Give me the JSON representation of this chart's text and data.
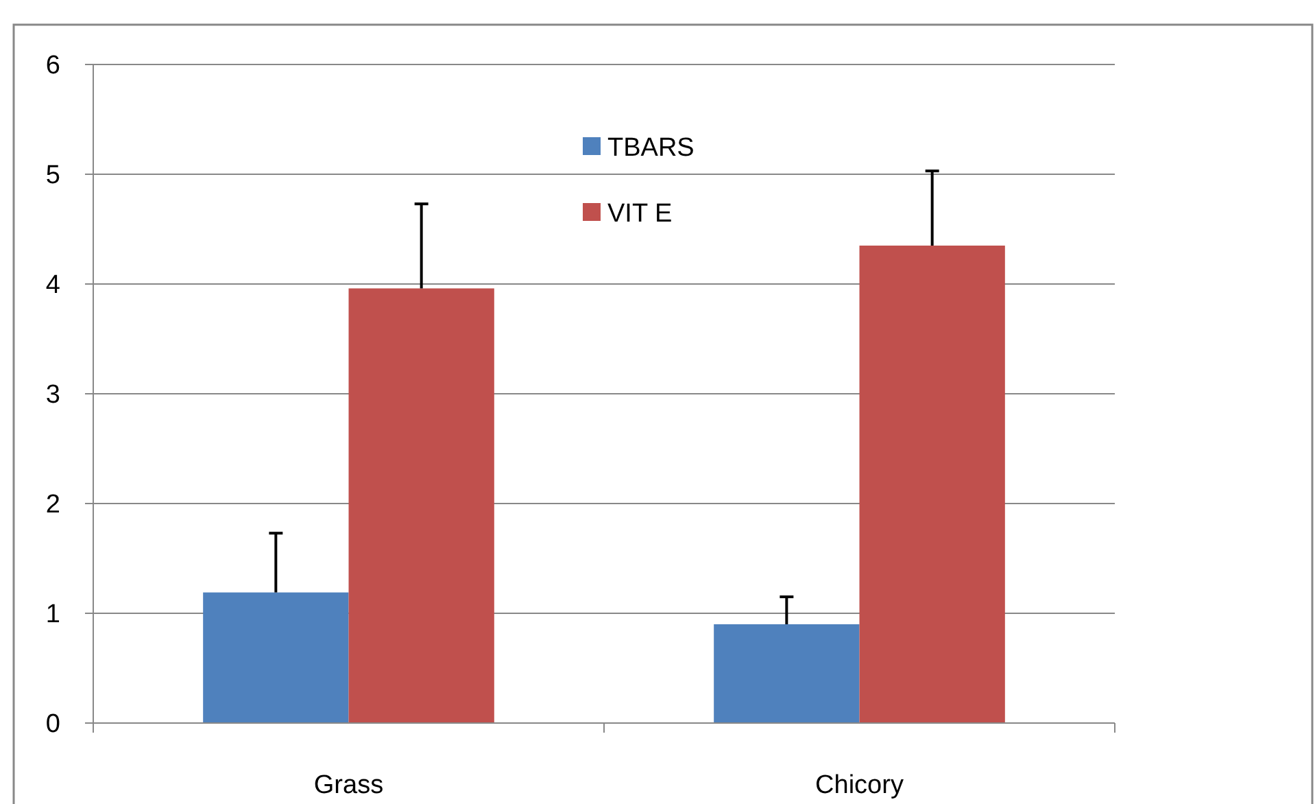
{
  "chart_data": {
    "type": "bar",
    "categories": [
      "Grass",
      "Chicory"
    ],
    "series": [
      {
        "name": "TBARS",
        "color": "#4f81bd",
        "values": [
          1.19,
          0.9
        ],
        "errors": [
          [
            1.19,
            1.73
          ],
          [
            0.9,
            1.15
          ]
        ]
      },
      {
        "name": "VIT E",
        "color": "#c0504d",
        "values": [
          3.96,
          4.35
        ],
        "errors": [
          [
            3.96,
            4.73
          ],
          [
            4.35,
            5.03
          ]
        ]
      }
    ],
    "ylim": [
      0,
      6
    ],
    "yticks": [
      0,
      1,
      2,
      3,
      4,
      5,
      6
    ],
    "grid": "y",
    "legend": "top"
  }
}
